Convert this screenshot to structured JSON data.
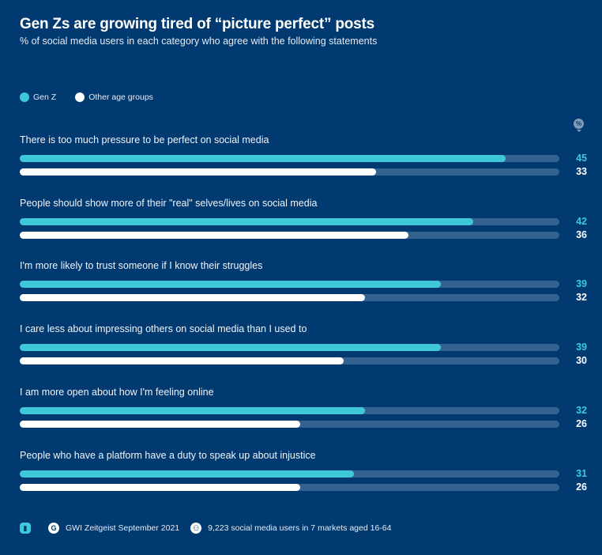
{
  "colors": {
    "background": "#003a70",
    "genz": "#3ec8da",
    "other": "#ffffff",
    "track": "#33628e"
  },
  "unit_badge": "%",
  "footer": {
    "chart_icon": "bar-chart-icon",
    "source": "GWI Zeitgeist September 2021",
    "sample": "9,223 social media users in 7 markets aged 16-64"
  },
  "chart_data": {
    "type": "bar",
    "orientation": "horizontal",
    "title": "Gen Zs are growing tired of “picture perfect” posts",
    "subtitle": "% of social media users in each category who agree with the following statements",
    "xlabel": "",
    "ylabel": "",
    "unit": "%",
    "xlim": [
      0,
      50
    ],
    "grid": false,
    "legend_position": "top-left",
    "categories": [
      "There is too much pressure to be perfect on social media",
      "People should show more of their \"real\" selves/lives on social media",
      "I'm more likely to trust someone if I know their struggles",
      "I care less about impressing others on social media than I used to",
      "I am more open about how I'm feeling online",
      "People who have a platform have a duty to speak up about injustice"
    ],
    "series": [
      {
        "name": "Gen Z",
        "color": "#3ec8da",
        "values": [
          45,
          42,
          39,
          39,
          32,
          31
        ]
      },
      {
        "name": "Other age groups",
        "color": "#ffffff",
        "values": [
          33,
          36,
          32,
          30,
          26,
          26
        ]
      }
    ]
  }
}
